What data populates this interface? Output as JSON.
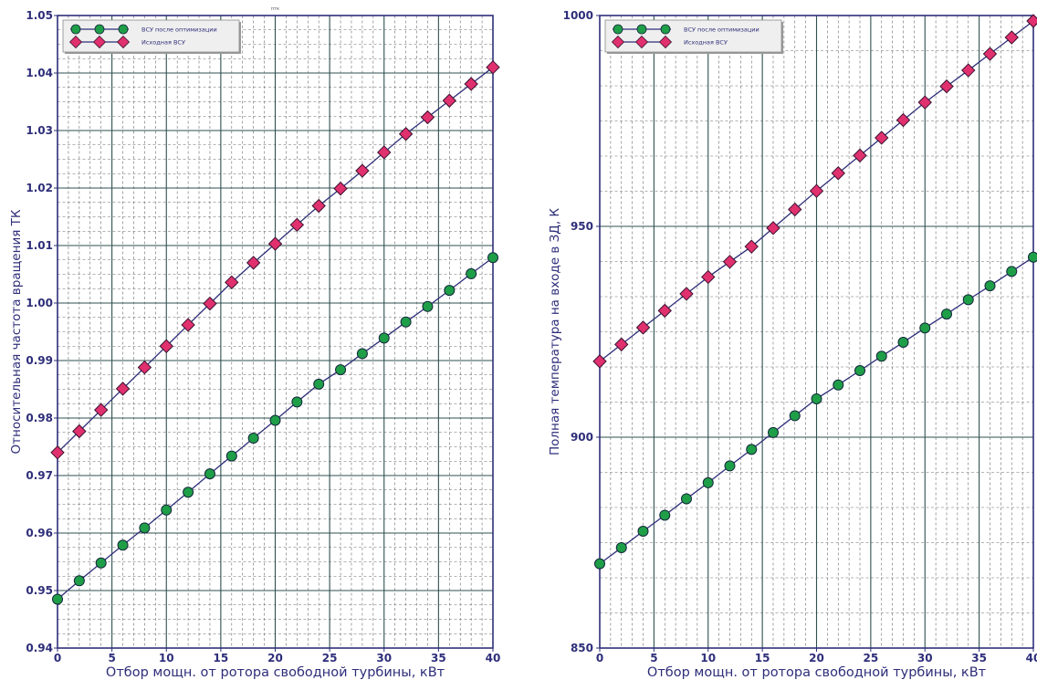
{
  "chart_data": [
    {
      "type": "line",
      "title": "птк",
      "xlabel": "Отбор мощн. от ротора свободной турбины, кВт",
      "ylabel": "Относительная частота вращения ТК",
      "xlim": [
        0,
        40
      ],
      "ylim": [
        0.94,
        1.05
      ],
      "x_ticks": [
        "0",
        "5",
        "10",
        "15",
        "20",
        "25",
        "30",
        "35",
        "40"
      ],
      "y_ticks": [
        "0.94",
        "0.95",
        "0.96",
        "0.97",
        "0.98",
        "0.99",
        "1.00",
        "1.01",
        "1.02",
        "1.03",
        "1.04",
        "1.05"
      ],
      "grid": true,
      "legend_position": "top-left",
      "x": [
        0,
        2,
        4,
        6,
        8,
        10,
        12,
        14,
        16,
        18,
        20,
        22,
        24,
        26,
        28,
        30,
        32,
        34,
        36,
        38,
        40
      ],
      "series": [
        {
          "name": "ВСУ после оптимизации",
          "marker": "circle",
          "color": "#1f9e48",
          "values": [
            0.9485,
            0.9517,
            0.9548,
            0.9579,
            0.9609,
            0.964,
            0.9671,
            0.9703,
            0.9734,
            0.9765,
            0.9796,
            0.9828,
            0.9859,
            0.9884,
            0.9912,
            0.9939,
            0.9967,
            0.9994,
            1.0022,
            1.0051,
            1.0079
          ]
        },
        {
          "name": "Исходная ВСУ",
          "marker": "diamond",
          "color": "#e0306e",
          "values": [
            0.974,
            0.9777,
            0.9814,
            0.9851,
            0.9888,
            0.9925,
            0.9962,
            0.9999,
            1.0036,
            1.007,
            1.0103,
            1.0136,
            1.0169,
            1.0199,
            1.023,
            1.0262,
            1.0294,
            1.0323,
            1.0352,
            1.0381,
            1.041
          ]
        }
      ]
    },
    {
      "type": "line",
      "xlabel": "Отбор мощн. от ротора свободной турбины, кВт",
      "ylabel": "Полная температура на входе в ЗД, К",
      "xlim": [
        0,
        40
      ],
      "ylim": [
        850,
        1000
      ],
      "x_ticks": [
        "0",
        "5",
        "10",
        "15",
        "20",
        "25",
        "30",
        "35",
        "40"
      ],
      "y_ticks": [
        "850",
        "900",
        "950",
        "1000"
      ],
      "grid": true,
      "legend_position": "top-left",
      "x": [
        0,
        2,
        4,
        6,
        8,
        10,
        12,
        14,
        16,
        18,
        20,
        22,
        24,
        26,
        28,
        30,
        32,
        34,
        36,
        38,
        40
      ],
      "series": [
        {
          "name": "ВСУ после оптимизации",
          "marker": "circle",
          "color": "#1f9e48",
          "values": [
            870,
            873.8,
            877.7,
            881.5,
            885.4,
            889.2,
            893.2,
            897.1,
            901.1,
            905.1,
            909.1,
            912.4,
            915.8,
            919.2,
            922.5,
            925.9,
            929.2,
            932.6,
            935.9,
            939.3,
            942.7
          ]
        },
        {
          "name": "Исходная ВСУ",
          "marker": "diamond",
          "color": "#e0306e",
          "values": [
            918,
            922,
            926,
            930,
            934,
            938,
            941.6,
            945.2,
            949.6,
            954,
            958.4,
            962.6,
            966.8,
            971,
            975.2,
            979.4,
            983.2,
            987,
            990.9,
            994.8,
            998.7
          ]
        }
      ]
    }
  ]
}
